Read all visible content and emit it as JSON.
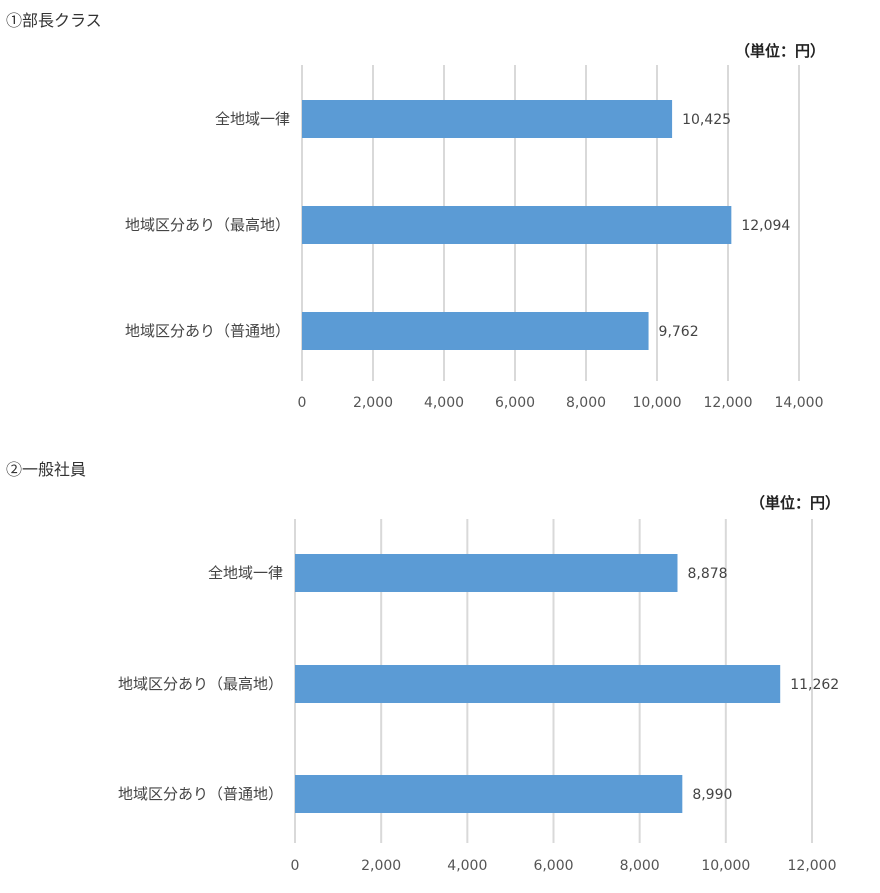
{
  "chart_data": [
    {
      "type": "bar",
      "orientation": "horizontal",
      "title": "①部長クラス",
      "unit_label": "（単位：円）",
      "categories": [
        "全地域一律",
        "地域区分あり（最高地）",
        "地域区分あり（普通地）"
      ],
      "values": [
        10425,
        12094,
        9762
      ],
      "value_labels": [
        "10,425",
        "12,094",
        "9,762"
      ],
      "xlim": [
        0,
        14000
      ],
      "ticks": [
        0,
        2000,
        4000,
        6000,
        8000,
        10000,
        12000,
        14000
      ],
      "tick_labels": [
        "0",
        "2,000",
        "4,000",
        "6,000",
        "8,000",
        "10,000",
        "12,000",
        "14,000"
      ],
      "grid": true,
      "bar_color": "#5b9bd5",
      "grid_color": "#d9d9d9"
    },
    {
      "type": "bar",
      "orientation": "horizontal",
      "title": "②一般社員",
      "unit_label": "（単位：円）",
      "categories": [
        "全地域一律",
        "地域区分あり（最高地）",
        "地域区分あり（普通地）"
      ],
      "values": [
        8878,
        11262,
        8990
      ],
      "value_labels": [
        "8,878",
        "11,262",
        "8,990"
      ],
      "xlim": [
        0,
        12000
      ],
      "ticks": [
        0,
        2000,
        4000,
        6000,
        8000,
        10000,
        12000
      ],
      "tick_labels": [
        "0",
        "2,000",
        "4,000",
        "6,000",
        "8,000",
        "10,000",
        "12,000"
      ],
      "grid": true,
      "bar_color": "#5b9bd5",
      "grid_color": "#d9d9d9"
    }
  ]
}
